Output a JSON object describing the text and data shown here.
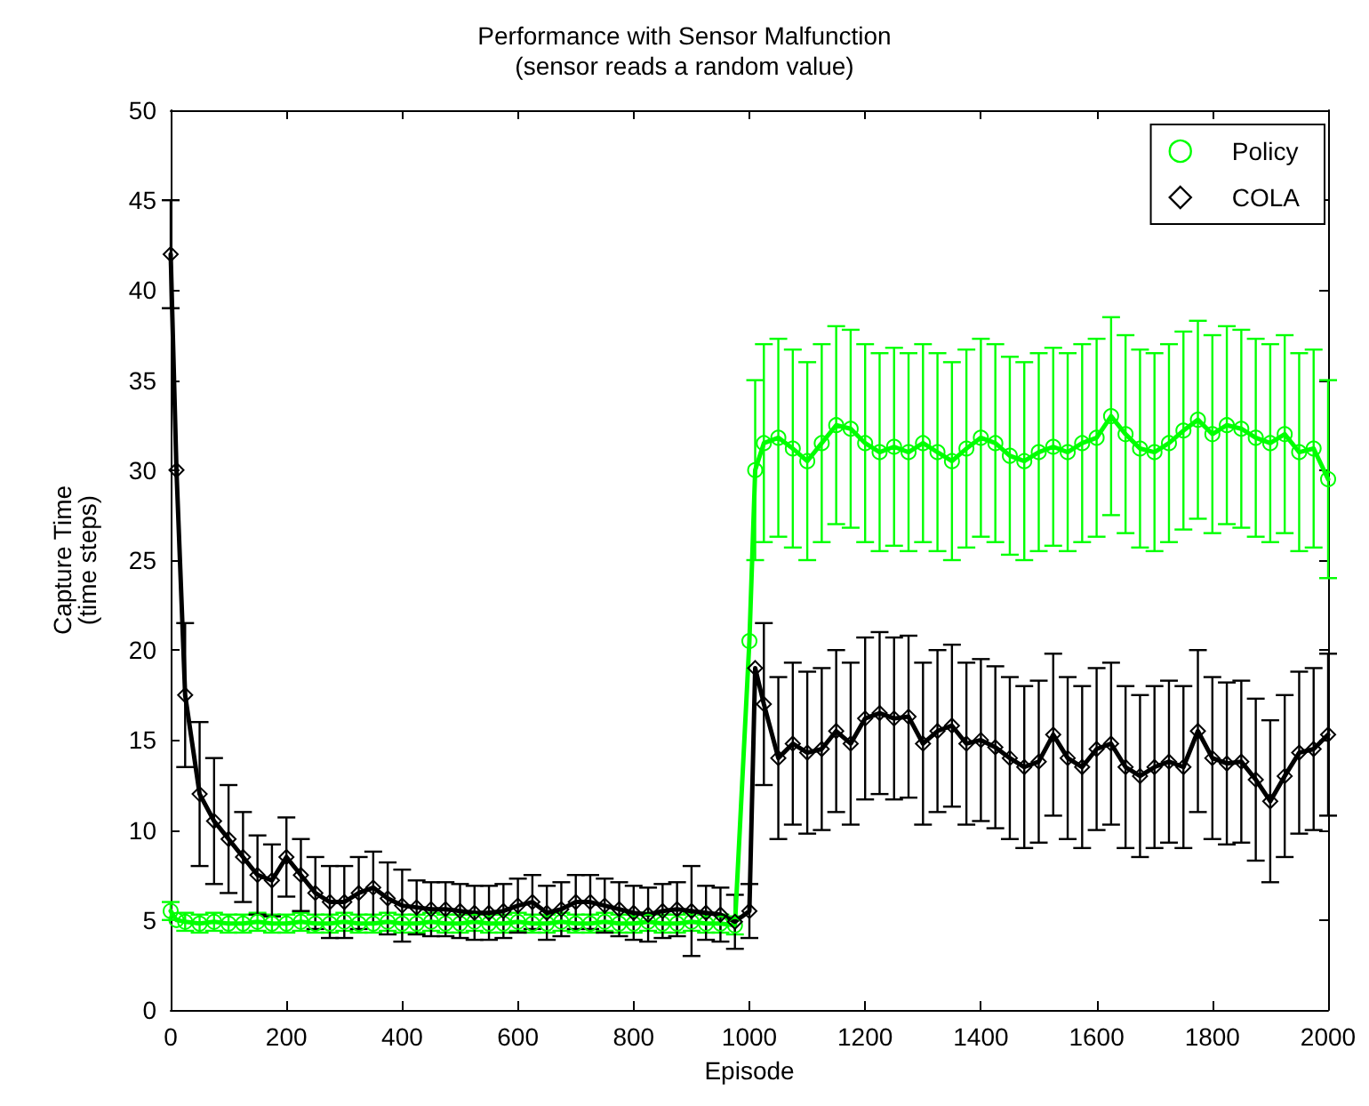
{
  "chart_data": {
    "type": "line",
    "title": "Performance with Sensor Malfunction",
    "subtitle": "(sensor reads a random value)",
    "xlabel": "Episode",
    "ylabel": "Capture Time\n(time steps)",
    "x": [
      0,
      10,
      25,
      50,
      75,
      100,
      125,
      150,
      175,
      200,
      225,
      250,
      275,
      300,
      325,
      350,
      375,
      400,
      425,
      450,
      475,
      500,
      525,
      550,
      575,
      600,
      625,
      650,
      675,
      700,
      725,
      750,
      775,
      800,
      825,
      850,
      875,
      900,
      925,
      950,
      975,
      1000,
      1010,
      1025,
      1050,
      1075,
      1100,
      1125,
      1150,
      1175,
      1200,
      1225,
      1250,
      1275,
      1300,
      1325,
      1350,
      1375,
      1400,
      1425,
      1450,
      1475,
      1500,
      1525,
      1550,
      1575,
      1600,
      1625,
      1650,
      1675,
      1700,
      1725,
      1750,
      1775,
      1800,
      1825,
      1850,
      1875,
      1900,
      1925,
      1950,
      1975,
      2000
    ],
    "series": [
      {
        "name": "Policy",
        "color": "#00ff00",
        "marker": "circle",
        "values": [
          5.5,
          5,
          4.9,
          4.8,
          4.9,
          4.8,
          4.8,
          4.9,
          4.8,
          4.8,
          4.9,
          4.8,
          4.8,
          4.9,
          4.8,
          4.8,
          4.9,
          4.8,
          4.8,
          4.9,
          4.8,
          4.8,
          4.9,
          4.8,
          4.8,
          4.9,
          4.8,
          4.8,
          4.9,
          4.8,
          4.8,
          4.9,
          4.8,
          4.8,
          4.9,
          4.8,
          4.8,
          4.9,
          4.8,
          4.8,
          4.7,
          20.5,
          30,
          31.5,
          31.8,
          31.2,
          30.5,
          31.5,
          32.5,
          32.3,
          31.5,
          31,
          31.3,
          31,
          31.5,
          31,
          30.5,
          31.2,
          31.8,
          31.5,
          30.8,
          30.5,
          31,
          31.3,
          31,
          31.5,
          31.8,
          33,
          32,
          31.2,
          31,
          31.5,
          32.2,
          32.8,
          32,
          32.5,
          32.3,
          31.8,
          31.5,
          32,
          31,
          31.2,
          29.5
        ],
        "errors": [
          0.5,
          null,
          0.5,
          0.5,
          0.5,
          0.5,
          0.5,
          0.5,
          0.5,
          0.5,
          0.5,
          0.5,
          0.5,
          0.5,
          0.5,
          0.5,
          0.5,
          0.5,
          0.5,
          0.5,
          0.5,
          0.5,
          0.5,
          0.5,
          0.5,
          0.5,
          0.5,
          0.5,
          0.5,
          0.5,
          0.5,
          0.5,
          0.5,
          0.5,
          0.5,
          0.5,
          0.5,
          0.5,
          0.5,
          0.5,
          0.5,
          null,
          5,
          5.5,
          5.5,
          5.5,
          5.5,
          5.5,
          5.5,
          5.5,
          5.5,
          5.5,
          5.5,
          5.5,
          5.5,
          5.5,
          5.5,
          5.5,
          5.5,
          5.5,
          5.5,
          5.5,
          5.5,
          5.5,
          5.5,
          5.5,
          5.5,
          5.5,
          5.5,
          5.5,
          5.5,
          5.5,
          5.5,
          5.5,
          5.5,
          5.5,
          5.5,
          5.5,
          5.5,
          5.5,
          5.5,
          5.5,
          5.5
        ]
      },
      {
        "name": "COLA",
        "color": "#000000",
        "marker": "diamond",
        "values": [
          42,
          30,
          17.5,
          12,
          10.5,
          9.5,
          8.5,
          7.5,
          7.2,
          8.5,
          7.5,
          6.5,
          6,
          6,
          6.5,
          6.8,
          6.2,
          5.8,
          5.7,
          5.6,
          5.6,
          5.5,
          5.4,
          5.4,
          5.5,
          5.8,
          6,
          5.4,
          5.6,
          6,
          6,
          5.8,
          5.6,
          5.4,
          5.3,
          5.5,
          5.6,
          5.5,
          5.4,
          5.3,
          4.9,
          5.5,
          19,
          17,
          14,
          14.8,
          14.3,
          14.5,
          15.5,
          14.8,
          16.2,
          16.5,
          16.2,
          16.3,
          14.8,
          15.5,
          15.8,
          14.8,
          15,
          14.6,
          14,
          13.5,
          13.8,
          15.3,
          14,
          13.5,
          14.5,
          14.8,
          13.5,
          13,
          13.5,
          13.8,
          13.5,
          15.5,
          14,
          13.7,
          13.8,
          12.8,
          11.6,
          13,
          14.3,
          14.5,
          15.3
        ],
        "errors": [
          3,
          null,
          4,
          4,
          3.5,
          3,
          2.5,
          2.2,
          2,
          2.2,
          2,
          2,
          2,
          2,
          2,
          2,
          2,
          2,
          1.5,
          1.5,
          1.5,
          1.5,
          1.5,
          1.5,
          1.5,
          1.5,
          1.5,
          1.5,
          1.5,
          1.5,
          1.5,
          1.5,
          1.5,
          1.5,
          1.5,
          1.5,
          1.5,
          2.5,
          1.5,
          1.5,
          1.5,
          1.5,
          null,
          4.5,
          4.5,
          4.5,
          4.5,
          4.5,
          4.5,
          4.5,
          4.5,
          4.5,
          4.5,
          4.5,
          4.5,
          4.5,
          4.5,
          4.5,
          4.5,
          4.5,
          4.5,
          4.5,
          4.5,
          4.5,
          4.5,
          4.5,
          4.5,
          4.5,
          4.5,
          4.5,
          4.5,
          4.5,
          4.5,
          4.5,
          4.5,
          4.5,
          4.5,
          4.5,
          4.5,
          4.5,
          4.5,
          4.5,
          4.5
        ]
      }
    ],
    "xlim": [
      0,
      2000
    ],
    "xticks": [
      0,
      200,
      400,
      600,
      800,
      1000,
      1200,
      1400,
      1600,
      1800,
      2000
    ],
    "ylim": [
      0,
      50
    ],
    "yticks": [
      0,
      5,
      10,
      15,
      20,
      25,
      30,
      35,
      40,
      45,
      50
    ],
    "grid": false,
    "legend": "top right"
  }
}
